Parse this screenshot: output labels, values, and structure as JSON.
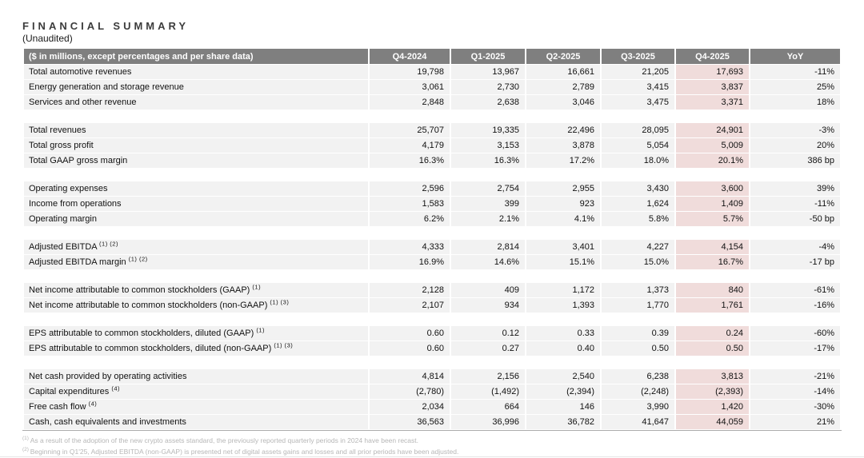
{
  "page": {
    "title": "FINANCIAL SUMMARY",
    "subtitle": "(Unaudited)"
  },
  "colors": {
    "header_bg": "#7f7f7f",
    "header_text": "#ffffff",
    "row_bg": "#f2f2f2",
    "highlight_bg": "#f0dcdb",
    "footnote_text": "#b7b7b7"
  },
  "table": {
    "header_label": "($ in millions, except percentages and per share data)",
    "columns": [
      "Q4-2024",
      "Q1-2025",
      "Q2-2025",
      "Q3-2025",
      "Q4-2025",
      "YoY"
    ],
    "highlight_column": "Q4-2025",
    "sections": [
      {
        "rows": [
          {
            "label": "Total automotive revenues",
            "sup": "",
            "values": [
              "19,798",
              "13,967",
              "16,661",
              "21,205",
              "17,693",
              "-11%"
            ]
          },
          {
            "label": "Energy generation and storage revenue",
            "sup": "",
            "values": [
              "3,061",
              "2,730",
              "2,789",
              "3,415",
              "3,837",
              "25%"
            ]
          },
          {
            "label": "Services and other revenue",
            "sup": "",
            "values": [
              "2,848",
              "2,638",
              "3,046",
              "3,475",
              "3,371",
              "18%"
            ]
          }
        ]
      },
      {
        "rows": [
          {
            "label": "Total revenues",
            "sup": "",
            "values": [
              "25,707",
              "19,335",
              "22,496",
              "28,095",
              "24,901",
              "-3%"
            ]
          },
          {
            "label": "Total gross profit",
            "sup": "",
            "values": [
              "4,179",
              "3,153",
              "3,878",
              "5,054",
              "5,009",
              "20%"
            ]
          },
          {
            "label": "Total GAAP gross margin",
            "sup": "",
            "values": [
              "16.3%",
              "16.3%",
              "17.2%",
              "18.0%",
              "20.1%",
              "386 bp"
            ]
          }
        ]
      },
      {
        "rows": [
          {
            "label": "Operating expenses",
            "sup": "",
            "values": [
              "2,596",
              "2,754",
              "2,955",
              "3,430",
              "3,600",
              "39%"
            ]
          },
          {
            "label": "Income from operations",
            "sup": "",
            "values": [
              "1,583",
              "399",
              "923",
              "1,624",
              "1,409",
              "-11%"
            ]
          },
          {
            "label": "Operating margin",
            "sup": "",
            "values": [
              "6.2%",
              "2.1%",
              "4.1%",
              "5.8%",
              "5.7%",
              "-50 bp"
            ]
          }
        ]
      },
      {
        "rows": [
          {
            "label": "Adjusted EBITDA",
            "sup": "(1) (2)",
            "values": [
              "4,333",
              "2,814",
              "3,401",
              "4,227",
              "4,154",
              "-4%"
            ]
          },
          {
            "label": "Adjusted EBITDA margin",
            "sup": "(1) (2)",
            "values": [
              "16.9%",
              "14.6%",
              "15.1%",
              "15.0%",
              "16.7%",
              "-17 bp"
            ]
          }
        ]
      },
      {
        "rows": [
          {
            "label": "Net income attributable to common stockholders (GAAP)",
            "sup": "(1)",
            "values": [
              "2,128",
              "409",
              "1,172",
              "1,373",
              "840",
              "-61%"
            ]
          },
          {
            "label": "Net income attributable to common stockholders (non-GAAP)",
            "sup": "(1) (3)",
            "values": [
              "2,107",
              "934",
              "1,393",
              "1,770",
              "1,761",
              "-16%"
            ]
          }
        ]
      },
      {
        "rows": [
          {
            "label": "EPS attributable to common stockholders, diluted (GAAP)",
            "sup": "(1)",
            "values": [
              "0.60",
              "0.12",
              "0.33",
              "0.39",
              "0.24",
              "-60%"
            ]
          },
          {
            "label": "EPS attributable to common stockholders, diluted (non-GAAP)",
            "sup": "(1) (3)",
            "values": [
              "0.60",
              "0.27",
              "0.40",
              "0.50",
              "0.50",
              "-17%"
            ]
          }
        ]
      },
      {
        "rows": [
          {
            "label": "Net cash provided by operating activities",
            "sup": "",
            "values": [
              "4,814",
              "2,156",
              "2,540",
              "6,238",
              "3,813",
              "-21%"
            ]
          },
          {
            "label": "Capital expenditures",
            "sup": "(4)",
            "values": [
              "(2,780)",
              "(1,492)",
              "(2,394)",
              "(2,248)",
              "(2,393)",
              "-14%"
            ]
          },
          {
            "label": "Free cash flow",
            "sup": "(4)",
            "values": [
              "2,034",
              "664",
              "146",
              "3,990",
              "1,420",
              "-30%"
            ]
          },
          {
            "label": "Cash, cash equivalents and investments",
            "sup": "",
            "values": [
              "36,563",
              "36,996",
              "36,782",
              "41,647",
              "44,059",
              "21%"
            ]
          }
        ]
      }
    ]
  },
  "footnotes": [
    {
      "marker": "(1)",
      "text": "As a result of the adoption of the new crypto assets standard, the previously reported quarterly periods in 2024 have been recast."
    },
    {
      "marker": "(2)",
      "text": "Beginning in Q1'25, Adjusted EBITDA (non-GAAP) is presented net of digital assets gains and losses and all prior periods have been adjusted."
    }
  ]
}
